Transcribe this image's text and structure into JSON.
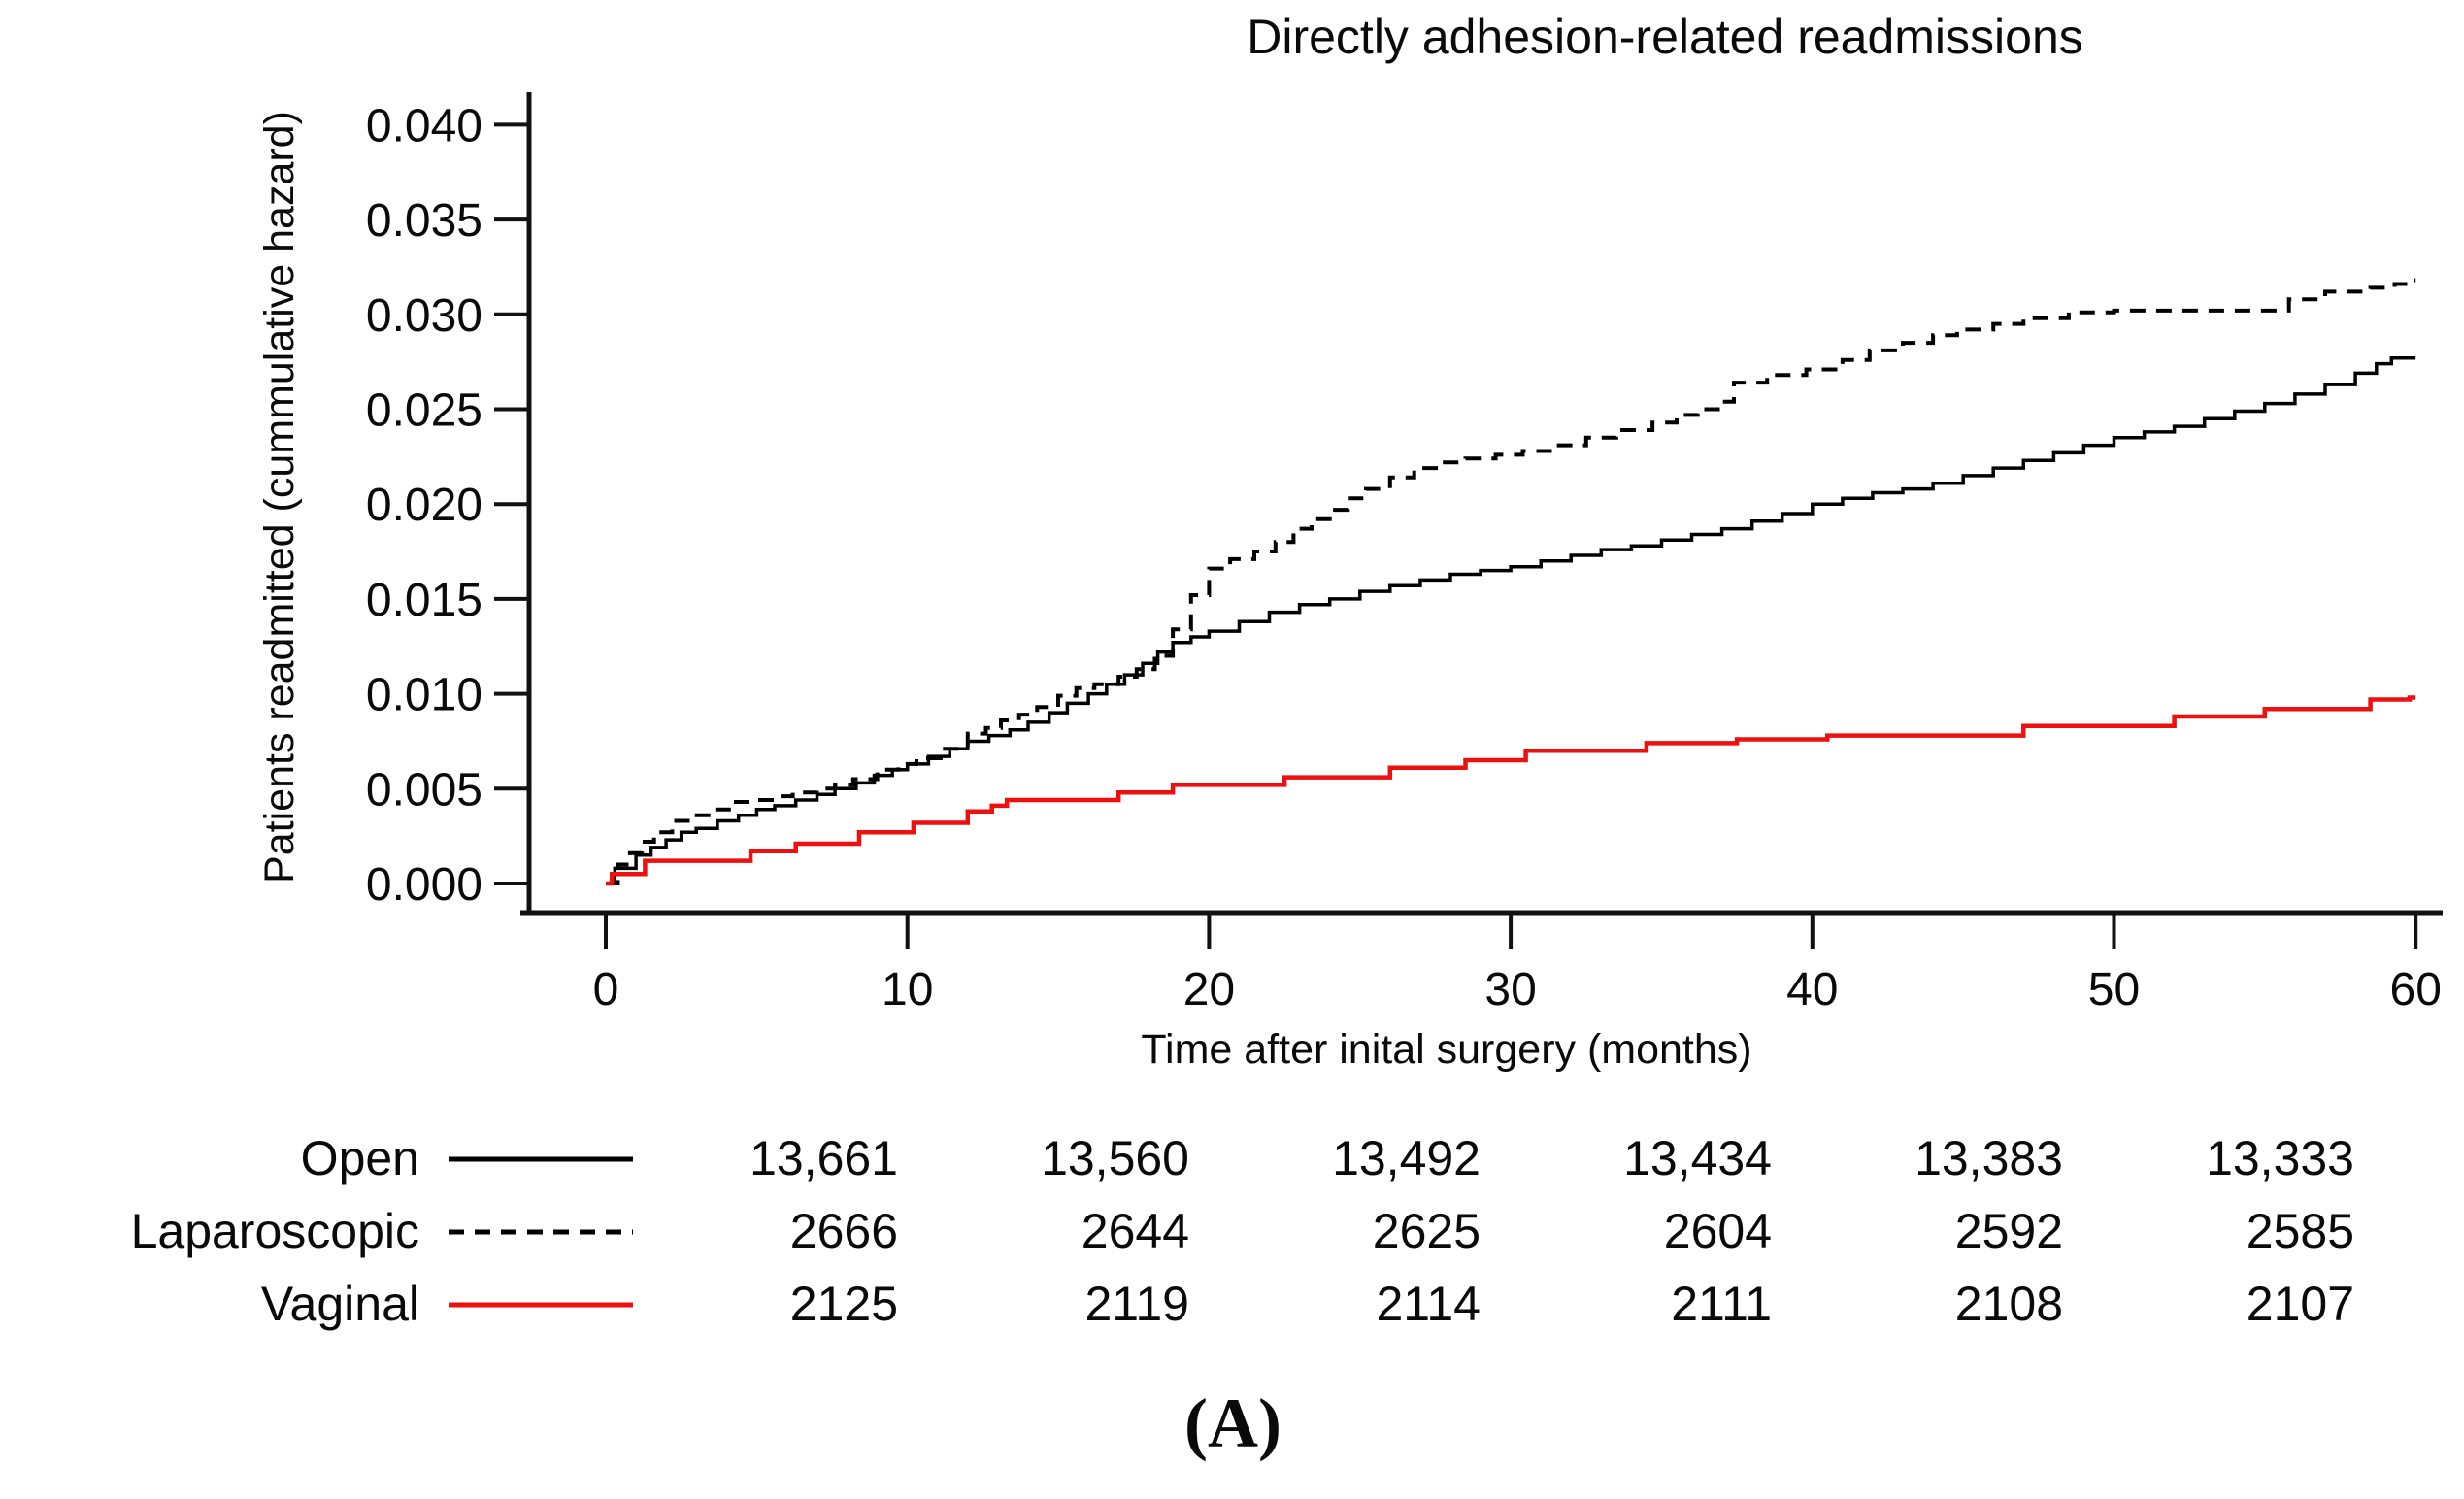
{
  "figure_label": "(A)",
  "colors": {
    "axis": "#111111",
    "open_line": "#000000",
    "laparoscopic_line": "#000000",
    "vaginal_line": "#ee0f0f",
    "background": "#ffffff",
    "text": "#0a0a0a"
  },
  "chart_data": {
    "type": "line",
    "subtype": "cumulative-hazard-step",
    "title": "Directly adhesion-related readmissions",
    "xlabel": "Time after inital surgery (months)",
    "ylabel": "Patients readmitted (cummulative hazard)",
    "xlim": [
      0,
      60
    ],
    "ylim": [
      0.0,
      0.04
    ],
    "x_ticks": [
      0,
      10,
      20,
      30,
      40,
      50,
      60
    ],
    "y_tick_labels": [
      "0.000",
      "0.005",
      "0.010",
      "0.015",
      "0.020",
      "0.025",
      "0.030",
      "0.035",
      "0.040"
    ],
    "grid": false,
    "legend_position": "bottom-left",
    "interpolation": "step-after",
    "series": [
      {
        "name": "Open",
        "style": "solid",
        "color": "#000000",
        "width": 3.5,
        "points": [
          [
            0,
            0
          ],
          [
            0.3,
            0.0008
          ],
          [
            1,
            0.0015
          ],
          [
            1.5,
            0.0019
          ],
          [
            2,
            0.0023
          ],
          [
            2.5,
            0.0027
          ],
          [
            3,
            0.0029
          ],
          [
            3.7,
            0.0033
          ],
          [
            4.4,
            0.0036
          ],
          [
            5,
            0.0039
          ],
          [
            5.6,
            0.0041
          ],
          [
            6.3,
            0.0044
          ],
          [
            7,
            0.0047
          ],
          [
            7.6,
            0.005
          ],
          [
            8.3,
            0.0053
          ],
          [
            8.9,
            0.0057
          ],
          [
            9.5,
            0.006
          ],
          [
            10,
            0.0063
          ],
          [
            10.7,
            0.0067
          ],
          [
            11.4,
            0.0071
          ],
          [
            12,
            0.0075
          ],
          [
            12.7,
            0.0078
          ],
          [
            13.4,
            0.0081
          ],
          [
            14,
            0.0085
          ],
          [
            14.7,
            0.009
          ],
          [
            15.3,
            0.0095
          ],
          [
            16,
            0.01
          ],
          [
            16.6,
            0.0105
          ],
          [
            17.2,
            0.011
          ],
          [
            17.8,
            0.0116
          ],
          [
            18.3,
            0.0122
          ],
          [
            18.8,
            0.0127
          ],
          [
            19.4,
            0.013
          ],
          [
            20,
            0.0133
          ],
          [
            21,
            0.0138
          ],
          [
            22,
            0.0143
          ],
          [
            23,
            0.0147
          ],
          [
            24,
            0.015
          ],
          [
            25,
            0.0154
          ],
          [
            26,
            0.0157
          ],
          [
            27,
            0.016
          ],
          [
            28,
            0.0163
          ],
          [
            29,
            0.0165
          ],
          [
            30,
            0.0167
          ],
          [
            31,
            0.017
          ],
          [
            32,
            0.0173
          ],
          [
            33,
            0.0176
          ],
          [
            34,
            0.0178
          ],
          [
            35,
            0.0181
          ],
          [
            36,
            0.0184
          ],
          [
            37,
            0.0187
          ],
          [
            38,
            0.0191
          ],
          [
            39,
            0.0195
          ],
          [
            40,
            0.02
          ],
          [
            41,
            0.0203
          ],
          [
            42,
            0.0206
          ],
          [
            43,
            0.0208
          ],
          [
            44,
            0.0211
          ],
          [
            45,
            0.0215
          ],
          [
            46,
            0.0219
          ],
          [
            47,
            0.0223
          ],
          [
            48,
            0.0227
          ],
          [
            49,
            0.0231
          ],
          [
            50,
            0.0235
          ],
          [
            51,
            0.0238
          ],
          [
            52,
            0.0241
          ],
          [
            53,
            0.0245
          ],
          [
            54,
            0.0249
          ],
          [
            55,
            0.0253
          ],
          [
            56,
            0.0258
          ],
          [
            57,
            0.0263
          ],
          [
            58,
            0.0269
          ],
          [
            58.7,
            0.0274
          ],
          [
            59.2,
            0.0277
          ],
          [
            60,
            0.0277
          ]
        ]
      },
      {
        "name": "Laparoscopic",
        "style": "dashed",
        "color": "#000000",
        "width": 4,
        "points": [
          [
            0,
            0
          ],
          [
            0.4,
            0.001
          ],
          [
            0.8,
            0.0016
          ],
          [
            1.2,
            0.0022
          ],
          [
            1.6,
            0.0027
          ],
          [
            2.2,
            0.0033
          ],
          [
            2.8,
            0.0036
          ],
          [
            3.6,
            0.0039
          ],
          [
            4.2,
            0.0043
          ],
          [
            5,
            0.0044
          ],
          [
            5.6,
            0.0046
          ],
          [
            6.2,
            0.0048
          ],
          [
            7,
            0.005
          ],
          [
            7.6,
            0.0052
          ],
          [
            8.2,
            0.0055
          ],
          [
            9,
            0.006
          ],
          [
            9.7,
            0.0063
          ],
          [
            10.3,
            0.0066
          ],
          [
            11.1,
            0.0071
          ],
          [
            12,
            0.0079
          ],
          [
            12.6,
            0.0082
          ],
          [
            13.1,
            0.0086
          ],
          [
            13.7,
            0.0089
          ],
          [
            14.3,
            0.0093
          ],
          [
            15,
            0.0099
          ],
          [
            15.6,
            0.0103
          ],
          [
            16.2,
            0.0105
          ],
          [
            17,
            0.0109
          ],
          [
            17.6,
            0.0113
          ],
          [
            18.2,
            0.012
          ],
          [
            18.8,
            0.0134
          ],
          [
            19.4,
            0.0152
          ],
          [
            20,
            0.0166
          ],
          [
            20.7,
            0.0171
          ],
          [
            21.5,
            0.0175
          ],
          [
            22.2,
            0.018
          ],
          [
            22.8,
            0.0187
          ],
          [
            23.4,
            0.0192
          ],
          [
            24,
            0.0197
          ],
          [
            24.6,
            0.0203
          ],
          [
            25.2,
            0.0208
          ],
          [
            26,
            0.0214
          ],
          [
            26.8,
            0.0219
          ],
          [
            27.6,
            0.0222
          ],
          [
            28.5,
            0.0224
          ],
          [
            29.5,
            0.0226
          ],
          [
            30.4,
            0.0228
          ],
          [
            31.5,
            0.0231
          ],
          [
            32.5,
            0.0235
          ],
          [
            33.5,
            0.0239
          ],
          [
            34.7,
            0.0243
          ],
          [
            35.5,
            0.0247
          ],
          [
            36.2,
            0.025
          ],
          [
            37,
            0.0254
          ],
          [
            37.4,
            0.0264
          ],
          [
            38.5,
            0.0268
          ],
          [
            39.8,
            0.0271
          ],
          [
            41,
            0.0276
          ],
          [
            41.9,
            0.0281
          ],
          [
            43,
            0.0285
          ],
          [
            44,
            0.0289
          ],
          [
            44.8,
            0.0292
          ],
          [
            46,
            0.0295
          ],
          [
            47,
            0.0298
          ],
          [
            48.5,
            0.0301
          ],
          [
            50,
            0.0302
          ],
          [
            55.3,
            0.0302
          ],
          [
            55.8,
            0.0308
          ],
          [
            57,
            0.0312
          ],
          [
            58.5,
            0.0314
          ],
          [
            59.3,
            0.0316
          ],
          [
            59.8,
            0.0318
          ]
        ]
      },
      {
        "name": "Vaginal",
        "style": "solid",
        "color": "#ee0f0f",
        "width": 4.5,
        "points": [
          [
            0,
            0
          ],
          [
            0.2,
            0.0005
          ],
          [
            1.3,
            0.0012
          ],
          [
            4.8,
            0.0017
          ],
          [
            6.3,
            0.0021
          ],
          [
            8.4,
            0.0027
          ],
          [
            10.2,
            0.0032
          ],
          [
            12,
            0.0038
          ],
          [
            12.8,
            0.0041
          ],
          [
            13.3,
            0.0044
          ],
          [
            17,
            0.0048
          ],
          [
            18.8,
            0.0052
          ],
          [
            22.5,
            0.0056
          ],
          [
            26,
            0.0061
          ],
          [
            28.5,
            0.0065
          ],
          [
            30.5,
            0.007
          ],
          [
            34.5,
            0.0074
          ],
          [
            37.5,
            0.0076
          ],
          [
            40.5,
            0.0078
          ],
          [
            47,
            0.0083
          ],
          [
            52,
            0.0088
          ],
          [
            55,
            0.0092
          ],
          [
            58.5,
            0.0097
          ],
          [
            59.8,
            0.0098
          ]
        ]
      }
    ],
    "risk_table": {
      "time_points": [
        0,
        10,
        20,
        30,
        40,
        50
      ],
      "rows": [
        {
          "label": "Open",
          "swatch": "solid-black",
          "counts": [
            "13,661",
            "13,560",
            "13,492",
            "13,434",
            "13,383",
            "13,333"
          ]
        },
        {
          "label": "Laparoscopic",
          "swatch": "dashed-black",
          "counts": [
            "2666",
            "2644",
            "2625",
            "2604",
            "2592",
            "2585"
          ]
        },
        {
          "label": "Vaginal",
          "swatch": "solid-red",
          "counts": [
            "2125",
            "2119",
            "2114",
            "2111",
            "2108",
            "2107"
          ]
        }
      ]
    }
  }
}
